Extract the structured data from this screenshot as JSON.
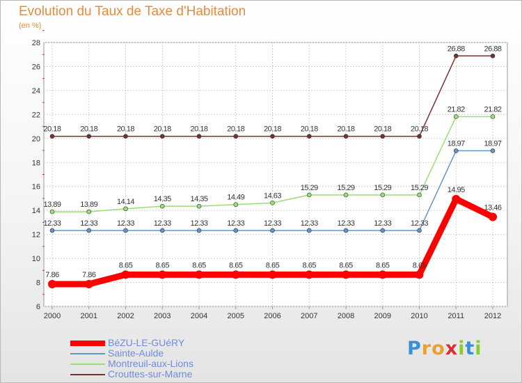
{
  "header": {
    "title": "Evolution du Taux de Taxe d'Habitation",
    "unit": "(en %)"
  },
  "logo": {
    "text": "Proxiti"
  },
  "chart_data": {
    "type": "line",
    "title": "Evolution du Taux de Taxe d'Habitation",
    "ylabel": "(en %)",
    "xlabel": "",
    "categories": [
      "2000",
      "2001",
      "2002",
      "2003",
      "2004",
      "2005",
      "2006",
      "2007",
      "2008",
      "2009",
      "2010",
      "2011",
      "2012"
    ],
    "ylim": [
      6,
      28
    ],
    "yticks": [
      6,
      8,
      10,
      12,
      14,
      16,
      18,
      20,
      22,
      24,
      26,
      28
    ],
    "grid": true,
    "legend_position": "bottom-left",
    "series": [
      {
        "name": "BéZU-LE-GUéRY",
        "color": "#ff0000",
        "values": [
          7.86,
          7.86,
          8.65,
          8.65,
          8.65,
          8.65,
          8.65,
          8.65,
          8.65,
          8.65,
          8.65,
          14.95,
          13.46
        ],
        "labels": [
          "7.86",
          "7.86",
          "8.65",
          "8.65",
          "8.65",
          "8.65",
          "8.65",
          "8.65",
          "8.65",
          "8.65",
          "8.65",
          "14.95",
          "13.46"
        ]
      },
      {
        "name": "Sainte-Aulde",
        "color": "#6495c8",
        "values": [
          12.33,
          12.33,
          12.33,
          12.33,
          12.33,
          12.33,
          12.33,
          12.33,
          12.33,
          12.33,
          12.33,
          18.97,
          18.97
        ],
        "labels": [
          "12.33",
          "12.33",
          "12.33",
          "12.33",
          "12.33",
          "12.33",
          "12.33",
          "12.33",
          "12.33",
          "12.33",
          "12.33",
          "18.97",
          "18.97"
        ]
      },
      {
        "name": "Montreuil-aux-Lions",
        "color": "#99dd77",
        "values": [
          13.89,
          13.89,
          14.14,
          14.35,
          14.35,
          14.49,
          14.63,
          15.29,
          15.29,
          15.29,
          15.29,
          21.82,
          21.82
        ],
        "labels": [
          "13.89",
          "13.89",
          "14.14",
          "14.35",
          "14.35",
          "14.49",
          "14.63",
          "15.29",
          "15.29",
          "15.29",
          "15.29",
          "21.82",
          "21.82"
        ]
      },
      {
        "name": "Crouttes-sur-Marne",
        "color": "#7a3030",
        "values": [
          20.18,
          20.18,
          20.18,
          20.18,
          20.18,
          20.18,
          20.18,
          20.18,
          20.18,
          20.18,
          20.18,
          26.88,
          26.88
        ],
        "labels": [
          "20.18",
          "20.18",
          "20.18",
          "20.18",
          "20.18",
          "20.18",
          "20.18",
          "20.18",
          "20.18",
          "20.18",
          "20.18",
          "26.88",
          "26.88"
        ]
      }
    ]
  }
}
